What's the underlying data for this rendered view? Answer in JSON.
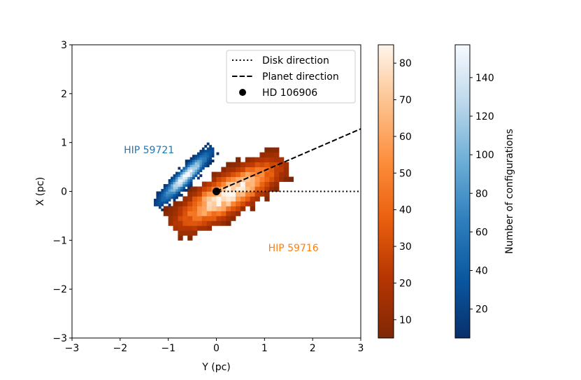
{
  "chart_data": {
    "type": "heatmap",
    "xlabel": "Y (pc)",
    "ylabel": "X (pc)",
    "xlim": [
      -3,
      3
    ],
    "ylim": [
      -3,
      3
    ],
    "xticks": [
      "−3",
      "−1",
      "0",
      "1",
      "2",
      "3"
    ],
    "xticks_full": [
      {
        "v": -3,
        "label": "−3"
      },
      {
        "v": -2,
        "label": "−2"
      },
      {
        "v": -1,
        "label": "−1"
      },
      {
        "v": 0,
        "label": "0"
      },
      {
        "v": 1,
        "label": "1"
      },
      {
        "v": 2,
        "label": "2"
      },
      {
        "v": 3,
        "label": "3"
      }
    ],
    "yticks_full": [
      {
        "v": -3,
        "label": "−3"
      },
      {
        "v": -2,
        "label": "−2"
      },
      {
        "v": -1,
        "label": "−1"
      },
      {
        "v": 0,
        "label": "0"
      },
      {
        "v": 1,
        "label": "1"
      },
      {
        "v": 2,
        "label": "2"
      },
      {
        "v": 3,
        "label": "3"
      }
    ],
    "series": [
      {
        "name": "HIP 59716",
        "label_color": "#ff7f0e",
        "colormap": "Oranges_r",
        "center": [
          0.25,
          -0.05
        ],
        "angle_deg": 30,
        "sigma_major": 0.75,
        "sigma_minor": 0.23,
        "extent_major": 1.35,
        "peak": 85,
        "label_pos": [
          1.6,
          -1.15
        ]
      },
      {
        "name": "HIP 59721",
        "label_color": "#1f77b4",
        "colormap": "Blues_r",
        "center": [
          -0.65,
          0.3
        ],
        "angle_deg": 45,
        "sigma_major": 0.42,
        "sigma_minor": 0.085,
        "extent_major": 0.85,
        "peak": 157,
        "label_pos": [
          -1.4,
          0.85
        ]
      }
    ],
    "lines": [
      {
        "name": "Disk direction",
        "style": "dotted",
        "from": [
          0,
          0
        ],
        "to": [
          3,
          0
        ]
      },
      {
        "name": "Planet direction",
        "style": "dashed",
        "from": [
          0,
          0
        ],
        "to": [
          3,
          1.28
        ]
      }
    ],
    "point": {
      "name": "HD 106906",
      "x": 0,
      "y": 0
    },
    "legend": {
      "position": "top-right",
      "entries": [
        "Disk direction",
        "Planet direction",
        "HD 106906"
      ]
    },
    "colorbars": [
      {
        "name": "HIP 59716",
        "range": [
          5,
          85
        ],
        "ticks": [
          10,
          20,
          30,
          40,
          50,
          60,
          70,
          80
        ],
        "label": ""
      },
      {
        "name": "HIP 59721",
        "range": [
          5,
          157
        ],
        "ticks": [
          20,
          40,
          60,
          80,
          100,
          120,
          140
        ],
        "label": "Number of configurations"
      }
    ]
  }
}
